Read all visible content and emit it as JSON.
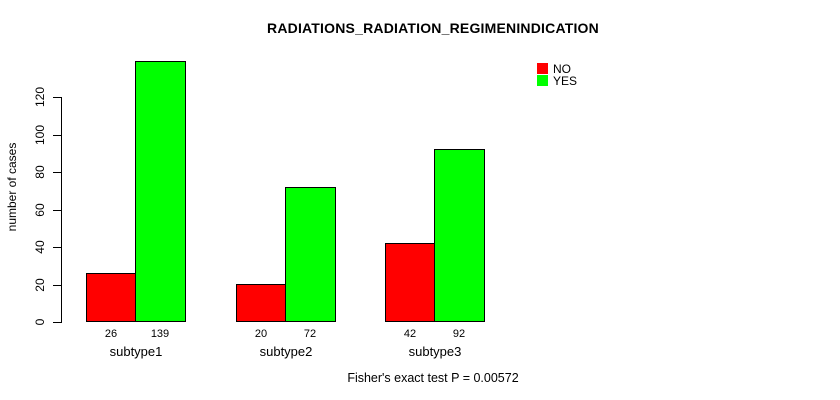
{
  "chart_data": {
    "type": "bar",
    "title": "RADIATIONS_RADIATION_REGIMENINDICATION",
    "ylabel": "number of cases",
    "xlabel": "",
    "categories": [
      "subtype1",
      "subtype2",
      "subtype3"
    ],
    "series": [
      {
        "name": "NO",
        "color": "#ff0000",
        "values": [
          26,
          20,
          42
        ]
      },
      {
        "name": "YES",
        "color": "#00ff00",
        "values": [
          139,
          72,
          92
        ]
      }
    ],
    "bar_value_labels_shown": true,
    "yticks": [
      0,
      20,
      40,
      60,
      80,
      100,
      120
    ],
    "ylim": [
      0,
      140
    ],
    "grid": false,
    "legend_position": "top-right",
    "annotation": "Fisher's exact test P = 0.00572",
    "colors": {
      "background": "#ffffff",
      "axis": "#000000",
      "text": "#000000"
    }
  }
}
